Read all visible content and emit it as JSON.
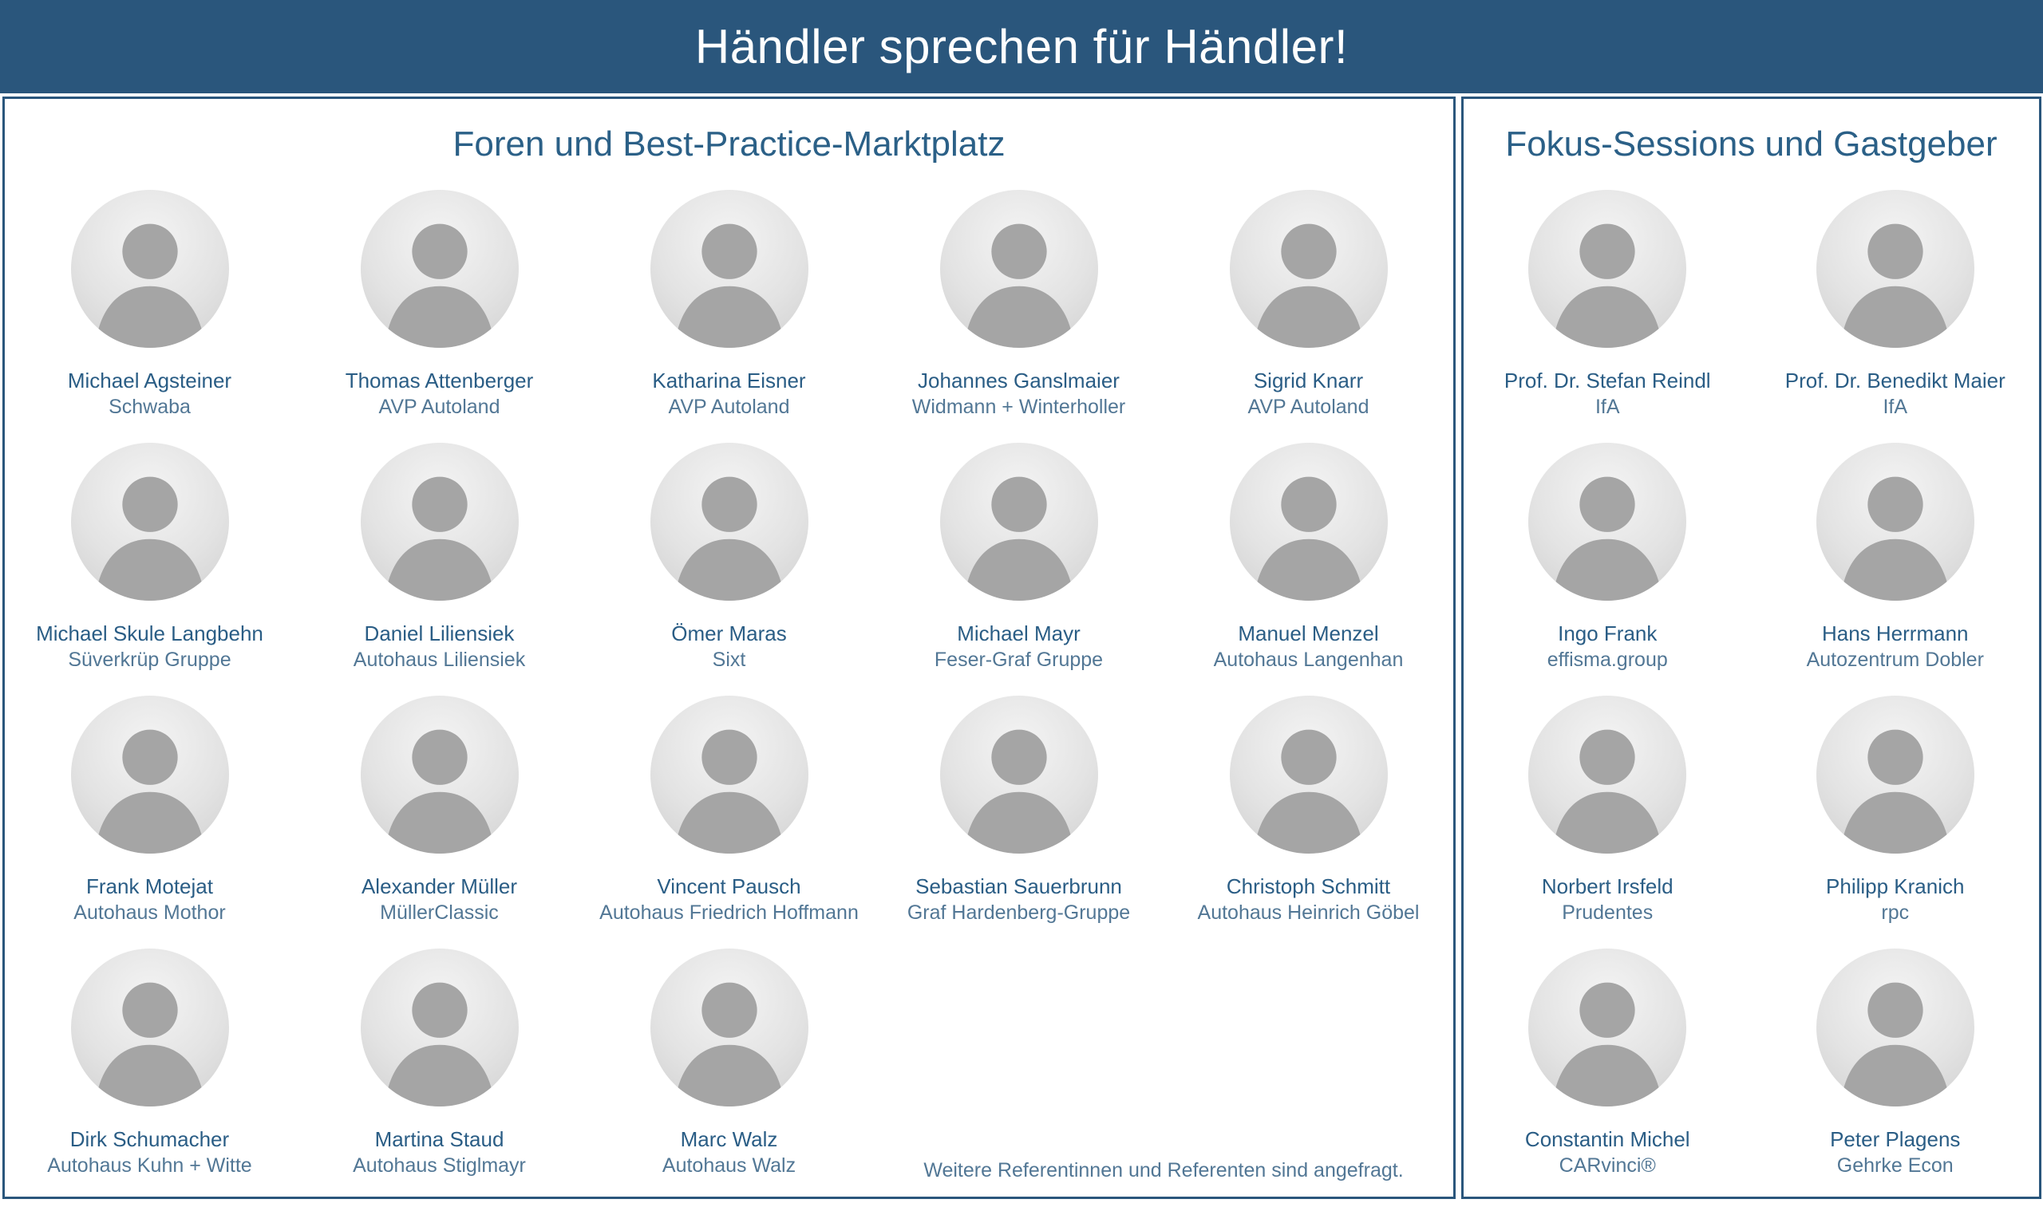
{
  "title": "Händler sprechen für Händler!",
  "colors": {
    "header_bg": "#2a567c",
    "panel_border": "#2a567c",
    "heading_text": "#2b6087",
    "name_text": "#2a5d85",
    "company_text": "#527795",
    "title_text": "#ffffff",
    "photo_style": "grayscale-circle"
  },
  "left_panel": {
    "heading": "Foren und Best-Practice-Marktplatz",
    "people": [
      {
        "name": "Michael Agsteiner",
        "company": "Schwaba"
      },
      {
        "name": "Thomas Attenberger",
        "company": "AVP Autoland"
      },
      {
        "name": "Katharina Eisner",
        "company": "AVP Autoland"
      },
      {
        "name": "Johannes Ganslmaier",
        "company": "Widmann + Winterholler"
      },
      {
        "name": "Sigrid Knarr",
        "company": "AVP Autoland"
      },
      {
        "name": "Michael Skule Langbehn",
        "company": "Süverkrüp Gruppe"
      },
      {
        "name": "Daniel Liliensiek",
        "company": "Autohaus Liliensiek"
      },
      {
        "name": "Ömer Maras",
        "company": "Sixt"
      },
      {
        "name": "Michael Mayr",
        "company": "Feser-Graf Gruppe"
      },
      {
        "name": "Manuel Menzel",
        "company": "Autohaus Langenhan"
      },
      {
        "name": "Frank Motejat",
        "company": "Autohaus Mothor"
      },
      {
        "name": "Alexander Müller",
        "company": "MüllerClassic"
      },
      {
        "name": "Vincent Pausch",
        "company": "Autohaus Friedrich Hoffmann"
      },
      {
        "name": "Sebastian Sauerbrunn",
        "company": "Graf Hardenberg-Gruppe"
      },
      {
        "name": "Christoph Schmitt",
        "company": "Autohaus Heinrich Göbel"
      },
      {
        "name": "Dirk Schumacher",
        "company": "Autohaus Kuhn + Witte"
      },
      {
        "name": "Martina Staud",
        "company": "Autohaus Stiglmayr"
      },
      {
        "name": "Marc Walz",
        "company": "Autohaus Walz"
      }
    ],
    "note": "Weitere Referentinnen und Referenten sind angefragt."
  },
  "right_panel": {
    "heading": "Fokus-Sessions und Gastgeber",
    "people": [
      {
        "name": "Prof. Dr. Stefan Reindl",
        "company": "IfA"
      },
      {
        "name": "Prof. Dr. Benedikt Maier",
        "company": "IfA"
      },
      {
        "name": "Ingo Frank",
        "company": "effisma.group"
      },
      {
        "name": "Hans Herrmann",
        "company": "Autozentrum Dobler"
      },
      {
        "name": "Norbert Irsfeld",
        "company": "Prudentes"
      },
      {
        "name": "Philipp Kranich",
        "company": "rpc"
      },
      {
        "name": "Constantin Michel",
        "company": "CARvinci®"
      },
      {
        "name": "Peter Plagens",
        "company": "Gehrke Econ"
      }
    ]
  }
}
